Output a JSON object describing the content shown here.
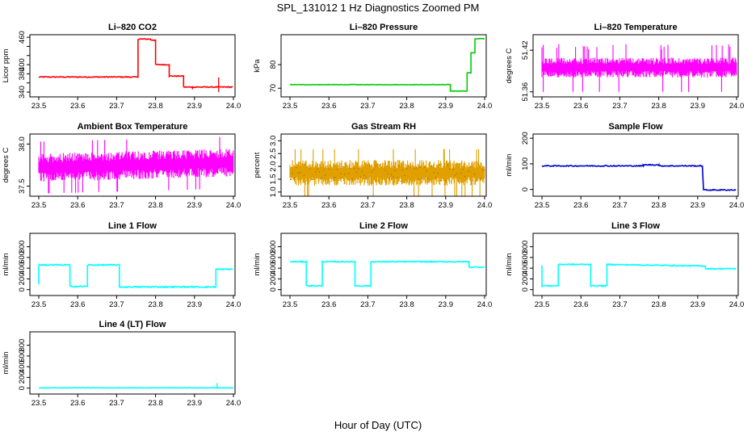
{
  "figure": {
    "title": "SPL_131012  1 Hz Diagnostics Zoomed PM",
    "xlabel": "Hour of Day (UTC)"
  },
  "chart_data": [
    {
      "type": "line",
      "title": "Li–820 CO2",
      "ylabel": "Licor ppm",
      "color": "#ff0000",
      "xlim": [
        23.5,
        24.0
      ],
      "xticks": [
        "23.5",
        "23.6",
        "23.7",
        "23.8",
        "23.9",
        "24.0"
      ],
      "ylim": [
        333,
        462
      ],
      "yticks": [
        340,
        360,
        380,
        400,
        420,
        440,
        460
      ],
      "ytick_labels": [
        "340",
        "",
        "380",
        "400",
        "",
        "",
        "460"
      ],
      "noise": 1.0,
      "series": [
        {
          "x": [
            23.5,
            23.755,
            23.755,
            23.767,
            23.767,
            23.787,
            23.787,
            23.8,
            23.8,
            23.835,
            23.835,
            23.872,
            23.872,
            24.0
          ],
          "y": [
            373,
            373,
            456,
            456,
            456,
            456,
            454,
            454,
            400,
            400,
            375,
            375,
            351,
            351
          ]
        }
      ],
      "spikes": [
        {
          "x": 23.962,
          "y0": 351,
          "y1": 372
        },
        {
          "x": 23.962,
          "y0": 351,
          "y1": 340
        },
        {
          "x": 23.895,
          "y0": 351,
          "y1": 346
        }
      ]
    },
    {
      "type": "line",
      "title": "Li–820 Pressure",
      "ylabel": "kPa",
      "color": "#00cc00",
      "xlim": [
        23.5,
        24.0
      ],
      "xticks": [
        "23.5",
        "23.6",
        "23.7",
        "23.8",
        "23.9",
        "24.0"
      ],
      "ylim": [
        67,
        92
      ],
      "yticks": [
        70,
        80
      ],
      "ytick_labels": [
        "70",
        "80"
      ],
      "noise": 0.1,
      "series": [
        {
          "x": [
            23.5,
            23.912,
            23.912,
            23.955,
            23.955,
            23.965,
            23.965,
            23.975,
            23.975,
            24.0
          ],
          "y": [
            71.5,
            71.5,
            68.8,
            68.8,
            76.5,
            76.5,
            85,
            85,
            91,
            91
          ]
        }
      ]
    },
    {
      "type": "noise",
      "title": "Li–820 Temperature",
      "ylabel": "degrees C",
      "color": "#ff00ff",
      "xlim": [
        23.5,
        24.0
      ],
      "xticks": [
        "23.5",
        "23.6",
        "23.7",
        "23.8",
        "23.9",
        "24.0"
      ],
      "ylim": [
        51.355,
        51.44
      ],
      "yticks": [
        51.36,
        51.42
      ],
      "ytick_labels": [
        "51.36",
        "51.42"
      ],
      "base": 51.395,
      "amp": 0.012,
      "spike_up": 51.425,
      "spike_down": 51.36
    },
    {
      "type": "noise",
      "title": "Ambient Box Temperature",
      "ylabel": "degrees C",
      "color": "#ff00ff",
      "xlim": [
        23.5,
        24.0
      ],
      "xticks": [
        "23.5",
        "23.6",
        "23.7",
        "23.8",
        "23.9",
        "24.0"
      ],
      "ylim": [
        37.4,
        38.1
      ],
      "yticks": [
        37.5,
        38.0
      ],
      "ytick_labels": [
        "37.5",
        "38.0"
      ],
      "base": 37.72,
      "amp": 0.14,
      "drift": 0.06
    },
    {
      "type": "noise",
      "title": "Gas Stream RH",
      "ylabel": "percent",
      "color": "#e0a000",
      "color2": "#b06000",
      "xlim": [
        23.5,
        24.0
      ],
      "xticks": [
        "23.5",
        "23.6",
        "23.7",
        "23.8",
        "23.9",
        "24.0"
      ],
      "ylim": [
        0.9,
        3.2
      ],
      "yticks": [
        1.0,
        1.5,
        2.0,
        2.5,
        3.0
      ],
      "ytick_labels": [
        "1.0",
        "1.5",
        "2.0",
        "2.5",
        "3.0"
      ],
      "base": 1.75,
      "amp": 0.42
    },
    {
      "type": "line",
      "title": "Sample Flow",
      "ylabel": "ml/min",
      "color": "#0000cc",
      "xlim": [
        23.5,
        24.0
      ],
      "xticks": [
        "23.5",
        "23.6",
        "23.7",
        "23.8",
        "23.9",
        "24.0"
      ],
      "ylim": [
        -20,
        210
      ],
      "yticks": [
        0,
        100,
        200
      ],
      "ytick_labels": [
        "0",
        "100",
        "200"
      ],
      "noise": 2.0,
      "series": [
        {
          "x": [
            23.5,
            23.76,
            23.76,
            23.8,
            23.8,
            23.912,
            23.915,
            24.0
          ],
          "y": [
            92,
            92,
            96,
            96,
            92,
            92,
            -2,
            -2
          ]
        }
      ]
    },
    {
      "type": "line",
      "title": "Line 1 Flow",
      "ylabel": "ml/min",
      "color": "#00ffff",
      "xlim": [
        23.5,
        24.0
      ],
      "xticks": [
        "23.5",
        "23.6",
        "23.7",
        "23.8",
        "23.9",
        "24.0"
      ],
      "ylim": [
        -80,
        1020
      ],
      "yticks": [
        0,
        200,
        400,
        600,
        800
      ],
      "ytick_labels": [
        "0",
        "200",
        "400",
        "600",
        "800"
      ],
      "noise": 12,
      "series": [
        {
          "x": [
            23.5,
            23.5,
            23.58,
            23.58,
            23.625,
            23.625,
            23.707,
            23.707,
            23.955,
            23.955,
            24.0
          ],
          "y": [
            100,
            460,
            460,
            60,
            60,
            460,
            460,
            50,
            50,
            380,
            380
          ]
        }
      ]
    },
    {
      "type": "line",
      "title": "Line 2 Flow",
      "ylabel": "ml/min",
      "color": "#00ffff",
      "xlim": [
        23.5,
        24.0
      ],
      "xticks": [
        "23.5",
        "23.6",
        "23.7",
        "23.8",
        "23.9",
        "24.0"
      ],
      "ylim": [
        -80,
        1020
      ],
      "yticks": [
        0,
        200,
        400,
        600,
        800
      ],
      "ytick_labels": [
        "0",
        "200",
        "400",
        "600",
        "800"
      ],
      "noise": 10,
      "series": [
        {
          "x": [
            23.5,
            23.542,
            23.542,
            23.583,
            23.583,
            23.667,
            23.667,
            23.708,
            23.708,
            23.96,
            23.96,
            24.0
          ],
          "y": [
            520,
            520,
            70,
            70,
            520,
            520,
            70,
            70,
            520,
            520,
            420,
            420
          ]
        }
      ]
    },
    {
      "type": "line",
      "title": "Line 3 Flow",
      "ylabel": "ml/min",
      "color": "#00ffff",
      "xlim": [
        23.5,
        24.0
      ],
      "xticks": [
        "23.5",
        "23.6",
        "23.7",
        "23.8",
        "23.9",
        "24.0"
      ],
      "ylim": [
        -80,
        1020
      ],
      "yticks": [
        0,
        200,
        400,
        600,
        800
      ],
      "ytick_labels": [
        "0",
        "200",
        "400",
        "600",
        "800"
      ],
      "noise": 10,
      "series": [
        {
          "x": [
            23.5,
            23.5,
            23.542,
            23.542,
            23.625,
            23.625,
            23.667,
            23.667,
            23.92,
            23.92,
            24.0
          ],
          "y": [
            450,
            70,
            70,
            470,
            470,
            70,
            70,
            470,
            440,
            390,
            390
          ]
        }
      ]
    },
    {
      "type": "line",
      "title": "Line 4 (LT) Flow",
      "ylabel": "ml/min",
      "color": "#00ffff",
      "xlim": [
        23.5,
        24.0
      ],
      "xticks": [
        "23.5",
        "23.6",
        "23.7",
        "23.8",
        "23.9",
        "24.0"
      ],
      "ylim": [
        -80,
        1020
      ],
      "yticks": [
        0,
        200,
        400,
        600,
        800
      ],
      "ytick_labels": [
        "0",
        "200",
        "400",
        "600",
        "800"
      ],
      "noise": 3,
      "series": [
        {
          "x": [
            23.5,
            24.0
          ],
          "y": [
            5,
            5
          ]
        }
      ],
      "spikes": [
        {
          "x": 23.958,
          "y0": 5,
          "y1": 95
        }
      ]
    }
  ]
}
